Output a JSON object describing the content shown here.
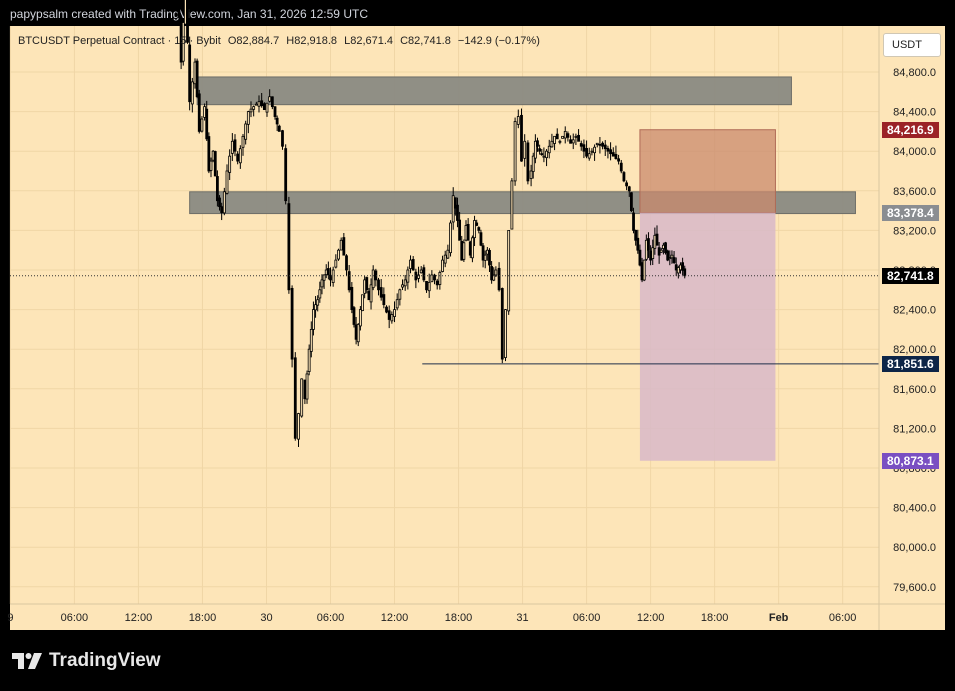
{
  "header": {
    "credit": "papypsalm created with TradingView.com, Jan 31, 2026 12:59 UTC"
  },
  "symbol": {
    "name": "BTCUSDT Perpetual Contract · 15 · Bybit",
    "open": "O82,884.7",
    "high": "H82,918.8",
    "low": "L82,671.4",
    "close": "C82,741.8",
    "change": "−142.9 (−0.17%)"
  },
  "currency_button": "USDT",
  "price_tags": {
    "target_top": "84,216.9",
    "entry": "83,378.4",
    "last": "82,741.8",
    "horizontal": "81,851.6",
    "stop_bottom": "80,873.1"
  },
  "colors": {
    "background": "#fde5b8",
    "candle": "#000000",
    "zone": "#8a8a82",
    "target_box": "#c98a6e",
    "stop_box": "#d8b8c8",
    "tag_target": "#9b2226",
    "tag_entry": "#8a8d91",
    "tag_last": "#000000",
    "tag_horizontal": "#0d2547",
    "tag_stop": "#7a4fc2"
  },
  "footer": {
    "brand": "TradingView"
  },
  "chart_data": {
    "type": "candlestick",
    "y_ticks": [
      84800,
      84400,
      84000,
      83600,
      83200,
      82800,
      82400,
      82000,
      81600,
      81200,
      80800,
      80400,
      80000,
      79600
    ],
    "y_tick_labels": [
      "84,800.0",
      "84,400.0",
      "84,000.0",
      "83,600.0",
      "83,200.0",
      "82,800.0",
      "82,400.0",
      "82,000.0",
      "81,600.0",
      "81,200.0",
      "80,800.0",
      "80,400.0",
      "80,000.0",
      "79,600.0"
    ],
    "ylim": [
      79400,
      85800
    ],
    "x_ticks": [
      "9",
      "06:00",
      "12:00",
      "18:00",
      "30",
      "06:00",
      "12:00",
      "18:00",
      "31",
      "06:00",
      "12:00",
      "18:00",
      "Feb",
      "06:00"
    ],
    "x_tick_hours": [
      0,
      6,
      12,
      18,
      24,
      30,
      36,
      42,
      48,
      54,
      60,
      66,
      72,
      78
    ],
    "resistance_zones": [
      {
        "top": 84750,
        "bottom": 84470,
        "x_start_hour": 17.5,
        "x_end_hour": 73.2
      },
      {
        "top": 83590,
        "bottom": 83370,
        "x_start_hour": 16.8,
        "x_end_hour": 79.2
      }
    ],
    "position": {
      "entry": 83378.4,
      "target": 84216.9,
      "stop": 80873.1,
      "x_start_hour": 59.0,
      "x_end_hour": 71.7
    },
    "horizontal_line": {
      "price": 81851.6,
      "x_start_hour": 38.6
    },
    "last_price": 82741.8,
    "path_points": [
      [
        15.2,
        85550
      ],
      [
        15.6,
        85800
      ],
      [
        16.0,
        84900
      ],
      [
        16.4,
        85700
      ],
      [
        16.8,
        84500
      ],
      [
        17.3,
        84900
      ],
      [
        17.7,
        84200
      ],
      [
        18.2,
        84450
      ],
      [
        18.6,
        83800
      ],
      [
        19.0,
        84000
      ],
      [
        19.4,
        83500
      ],
      [
        19.8,
        83380
      ],
      [
        20.3,
        83800
      ],
      [
        20.8,
        84100
      ],
      [
        21.3,
        83900
      ],
      [
        21.8,
        84150
      ],
      [
        22.3,
        84400
      ],
      [
        22.8,
        84450
      ],
      [
        23.3,
        84500
      ],
      [
        23.8,
        84420
      ],
      [
        24.3,
        84550
      ],
      [
        24.8,
        84350
      ],
      [
        25.2,
        84200
      ],
      [
        25.5,
        84050
      ],
      [
        25.8,
        83500
      ],
      [
        26.1,
        82600
      ],
      [
        26.4,
        81900
      ],
      [
        26.7,
        81100
      ],
      [
        27.0,
        81350
      ],
      [
        27.3,
        81700
      ],
      [
        27.6,
        81500
      ],
      [
        28.0,
        82000
      ],
      [
        28.4,
        82400
      ],
      [
        28.8,
        82500
      ],
      [
        29.2,
        82700
      ],
      [
        29.6,
        82800
      ],
      [
        30.0,
        82700
      ],
      [
        30.5,
        82900
      ],
      [
        31.0,
        83100
      ],
      [
        31.5,
        82800
      ],
      [
        32.0,
        82400
      ],
      [
        32.4,
        82100
      ],
      [
        32.8,
        82400
      ],
      [
        33.2,
        82700
      ],
      [
        33.6,
        82500
      ],
      [
        34.0,
        82800
      ],
      [
        34.5,
        82600
      ],
      [
        35.0,
        82450
      ],
      [
        35.5,
        82300
      ],
      [
        36.0,
        82400
      ],
      [
        36.5,
        82600
      ],
      [
        37.0,
        82700
      ],
      [
        37.5,
        82900
      ],
      [
        38.0,
        82700
      ],
      [
        38.5,
        82800
      ],
      [
        39.0,
        82600
      ],
      [
        39.5,
        82750
      ],
      [
        40.0,
        82650
      ],
      [
        40.5,
        82900
      ],
      [
        41.0,
        83000
      ],
      [
        41.5,
        83550
      ],
      [
        41.9,
        83300
      ],
      [
        42.3,
        82900
      ],
      [
        42.7,
        83250
      ],
      [
        43.1,
        82950
      ],
      [
        43.5,
        83300
      ],
      [
        43.9,
        83200
      ],
      [
        44.3,
        82900
      ],
      [
        44.7,
        83000
      ],
      [
        45.1,
        82700
      ],
      [
        45.5,
        82800
      ],
      [
        45.8,
        82600
      ],
      [
        46.1,
        81900
      ],
      [
        46.4,
        82400
      ],
      [
        46.7,
        83200
      ],
      [
        47.0,
        83700
      ],
      [
        47.3,
        84300
      ],
      [
        47.6,
        84350
      ],
      [
        47.9,
        83900
      ],
      [
        48.2,
        84100
      ],
      [
        48.5,
        83700
      ],
      [
        48.8,
        83800
      ],
      [
        49.2,
        84100
      ],
      [
        49.6,
        84000
      ],
      [
        50.0,
        83950
      ],
      [
        50.5,
        84050
      ],
      [
        51.0,
        84150
      ],
      [
        51.5,
        84100
      ],
      [
        52.0,
        84200
      ],
      [
        52.5,
        84080
      ],
      [
        53.0,
        84150
      ],
      [
        53.5,
        84050
      ],
      [
        54.0,
        83950
      ],
      [
        54.5,
        84000
      ],
      [
        55.0,
        84080
      ],
      [
        55.5,
        84050
      ],
      [
        56.0,
        84000
      ],
      [
        56.5,
        83950
      ],
      [
        57.0,
        83900
      ],
      [
        57.5,
        83700
      ],
      [
        58.0,
        83600
      ],
      [
        58.4,
        83200
      ],
      [
        58.8,
        83000
      ],
      [
        59.2,
        82700
      ],
      [
        59.6,
        83100
      ],
      [
        60.0,
        82900
      ],
      [
        60.4,
        83150
      ],
      [
        60.8,
        82950
      ],
      [
        61.2,
        83050
      ],
      [
        61.6,
        82900
      ],
      [
        62.0,
        82950
      ],
      [
        62.4,
        82800
      ],
      [
        62.8,
        82850
      ],
      [
        63.2,
        82742
      ]
    ]
  }
}
